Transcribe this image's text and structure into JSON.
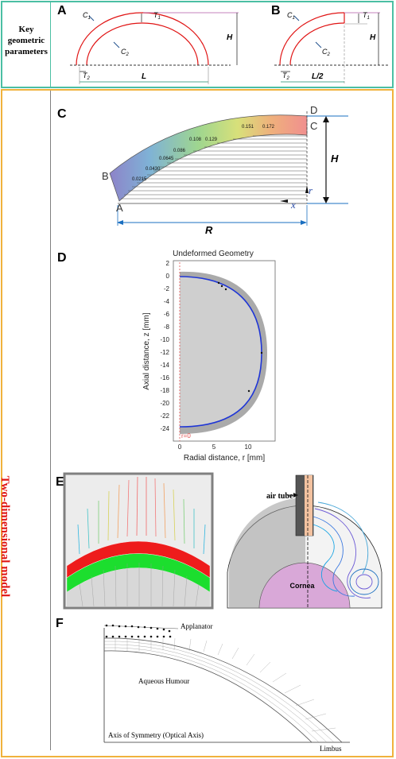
{
  "side_labels": {
    "top": "Key geometric parameters",
    "bottom": "Two-dimensional model"
  },
  "panels": {
    "A": {
      "letter": "A",
      "c1": "C",
      "c1_sub": "1",
      "c2": "C",
      "c2_sub": "2",
      "t1": "T",
      "t1_sub": "1",
      "t2": "T",
      "t2_sub": "2",
      "h": "H",
      "l": "L"
    },
    "B": {
      "letter": "B",
      "c1": "C",
      "c1_sub": "1",
      "c2": "C",
      "c2_sub": "2",
      "t1": "T",
      "t1_sub": "1",
      "t2": "T",
      "t2_sub": "2",
      "h": "H",
      "l": "L/2"
    },
    "C": {
      "letter": "C",
      "pt_a": "A",
      "pt_b": "B",
      "pt_c": "C",
      "pt_d": "D",
      "h": "H",
      "r": "R",
      "axis_r": "r",
      "axis_x": "x",
      "contours": [
        "0.0215",
        "0.0430",
        "0.0645",
        "0.086",
        "0.108",
        "0.129",
        "0.151",
        "0.172"
      ]
    },
    "D": {
      "letter": "D",
      "title": "Undeformed Geometry",
      "xlabel": "Radial distance, r [mm]",
      "ylabel": "Axial distance, z [mm]",
      "r0": "r=0",
      "yticks": [
        "2",
        "0",
        "-2",
        "-4",
        "-6",
        "-8",
        "-10",
        "-12",
        "-14",
        "-16",
        "-18",
        "-20",
        "-22",
        "-24"
      ],
      "xticks": [
        "0",
        "5",
        "10"
      ]
    },
    "E": {
      "letter": "E",
      "air_tube": "air tube",
      "cornea": "Cornea"
    },
    "F": {
      "letter": "F",
      "applanator": "Applanator",
      "aqueous": "Aqueous Humour",
      "axis": "Axis of Symmetry (Optical Axis)",
      "limbus": "Limbus"
    }
  },
  "colors": {
    "teal": "#4bbfa3",
    "orange": "#f0b23c",
    "red": "#e01414",
    "blue": "#2b2bd6"
  }
}
